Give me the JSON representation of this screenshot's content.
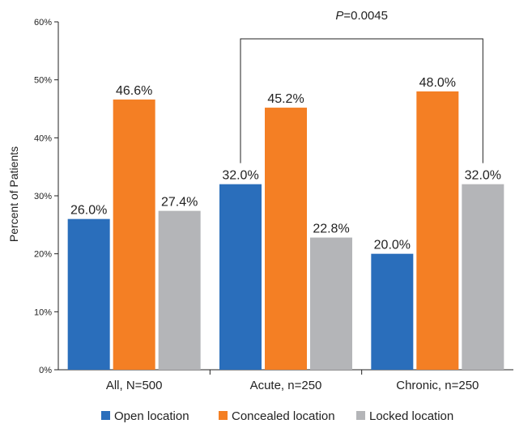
{
  "chart_data": {
    "type": "bar",
    "title": "",
    "xlabel": "",
    "ylabel": "Percent of Patients",
    "ylim": [
      0,
      60
    ],
    "yticks": [
      "0%",
      "10%",
      "20%",
      "30%",
      "40%",
      "50%",
      "60%"
    ],
    "categories": [
      "All, N=500",
      "Acute, n=250",
      "Chronic, n=250"
    ],
    "series": [
      {
        "name": "Open location",
        "color": "#2a6ebb",
        "values": [
          26.0,
          32.0,
          20.0
        ],
        "labels": [
          "26.0%",
          "32.0%",
          "20.0%"
        ]
      },
      {
        "name": "Concealed location",
        "color": "#f47f24",
        "values": [
          46.6,
          45.2,
          48.0
        ],
        "labels": [
          "46.6%",
          "45.2%",
          "48.0%"
        ]
      },
      {
        "name": "Locked location",
        "color": "#b4b5b8",
        "values": [
          27.4,
          22.8,
          32.0
        ],
        "labels": [
          "27.4%",
          "22.8%",
          "32.0%"
        ]
      }
    ],
    "legend": "bottom",
    "grid": false,
    "annotation": {
      "prefix": "P",
      "text": "=0.0045"
    }
  }
}
